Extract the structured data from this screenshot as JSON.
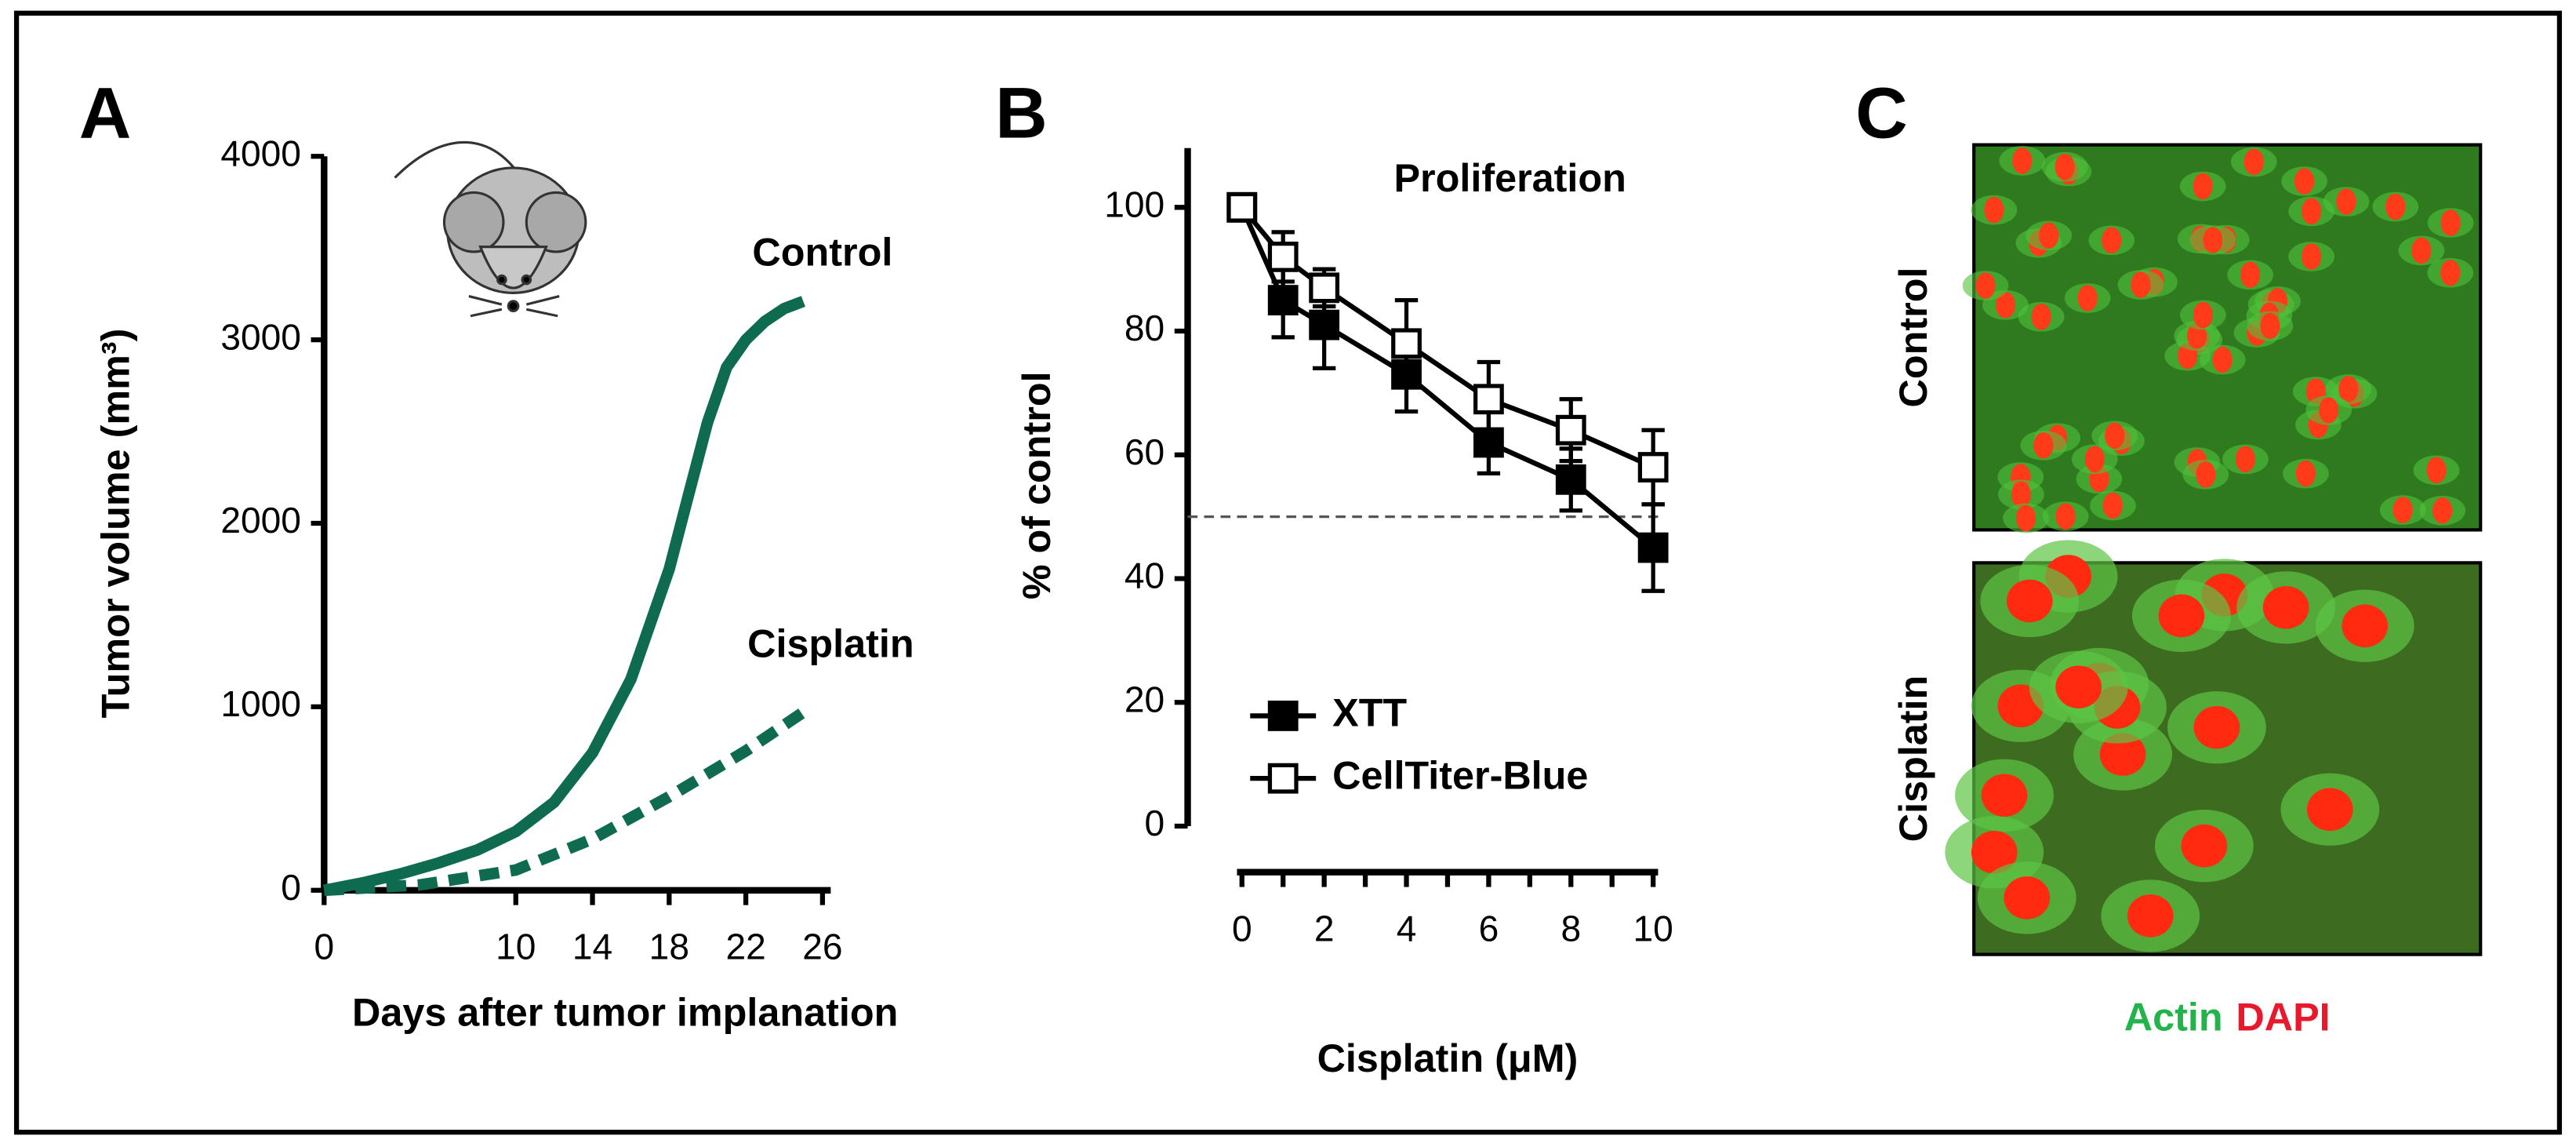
{
  "chart_data": [
    {
      "type": "line",
      "panel_label": "A",
      "xlabel": "Days after tumor implanation",
      "ylabel": "Tumor volume (mm³)",
      "xlim": [
        0,
        26
      ],
      "xticks": [
        0,
        10,
        14,
        18,
        22,
        26
      ],
      "ylim": [
        0,
        4000
      ],
      "yticks": [
        0,
        1000,
        2000,
        3000,
        4000
      ],
      "series": [
        {
          "name": "Control",
          "color": "#0f6b50",
          "style": "solid",
          "x": [
            0,
            2,
            4,
            6,
            8,
            10,
            12,
            14,
            16,
            18,
            19,
            20,
            21,
            22,
            23,
            24,
            25
          ],
          "values": [
            0,
            40,
            90,
            150,
            220,
            320,
            480,
            750,
            1150,
            1750,
            2150,
            2550,
            2850,
            3000,
            3100,
            3170,
            3210
          ]
        },
        {
          "name": "Cisplatin",
          "color": "#0f6b50",
          "style": "dotted",
          "x": [
            0,
            5,
            10,
            14,
            18,
            22,
            25
          ],
          "values": [
            0,
            30,
            110,
            280,
            510,
            760,
            970
          ]
        }
      ]
    },
    {
      "type": "errorline",
      "panel_label": "B",
      "title": "Proliferation",
      "xlabel": "Cisplatin (μM)",
      "ylabel": "% of control",
      "x": [
        0,
        1,
        2,
        4,
        6,
        8,
        10
      ],
      "xlim": [
        0,
        10
      ],
      "xticks": [
        0,
        2,
        4,
        6,
        8,
        10
      ],
      "minor_xticks": [
        1,
        3,
        5,
        7,
        9
      ],
      "ylim": [
        0,
        110
      ],
      "yticks": [
        0,
        20,
        40,
        60,
        80,
        100
      ],
      "reference_line": 50,
      "series": [
        {
          "name": "XTT",
          "color": "#000000",
          "marker": "filled-square",
          "values": [
            100,
            85,
            81,
            73,
            62,
            56,
            45
          ],
          "errors": [
            1,
            6,
            7,
            6,
            5,
            5,
            7
          ]
        },
        {
          "name": "CellTiter-Blue",
          "color": "#000000",
          "marker": "open-square",
          "values": [
            100,
            92,
            87,
            78,
            69,
            64,
            58
          ],
          "errors": [
            1,
            4,
            3,
            7,
            6,
            5,
            6
          ]
        }
      ]
    }
  ],
  "panel_c": {
    "panel_label": "C",
    "rows": [
      "Control",
      "Cisplatin"
    ],
    "stains": [
      {
        "text": "Actin",
        "color": "#22b34a"
      },
      {
        "text": "DAPI",
        "color": "#e8192c"
      }
    ]
  }
}
